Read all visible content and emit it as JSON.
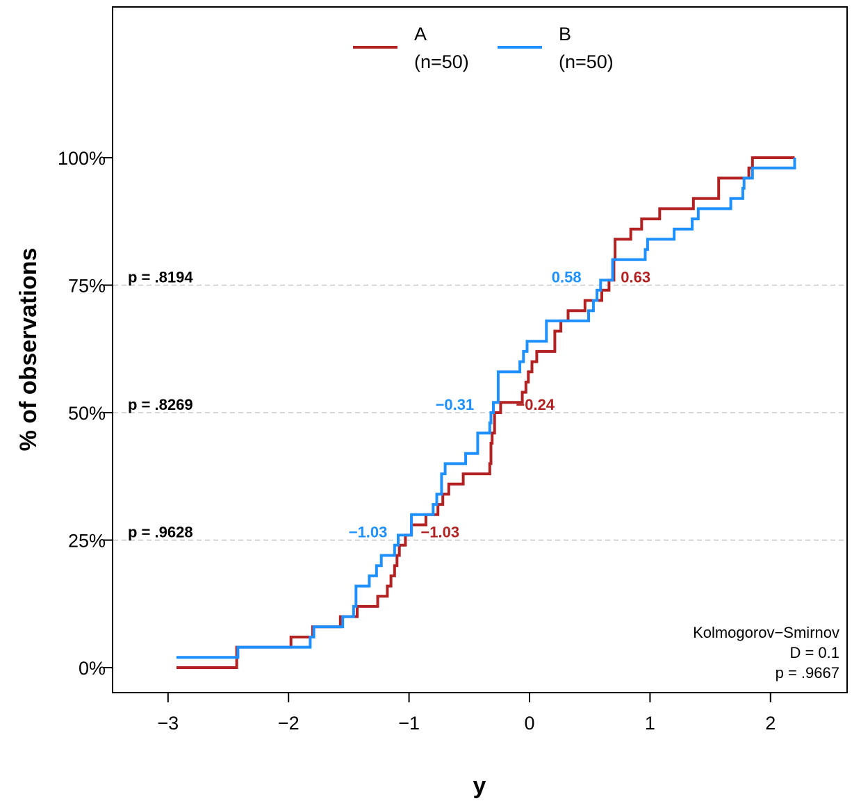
{
  "chart_data": {
    "type": "line",
    "subtype": "ecdf-step",
    "xlabel": "y",
    "ylabel": "% of observations",
    "xlim": [
      -3.45,
      2.65
    ],
    "ylim": [
      -0.05,
      1.3
    ],
    "x_ticks": [
      -3,
      -2,
      -1,
      0,
      1,
      2
    ],
    "x_tick_labels": [
      "−3",
      "−2",
      "−1",
      "0",
      "1",
      "2"
    ],
    "y_ticks": [
      0,
      0.25,
      0.5,
      0.75,
      1.0
    ],
    "y_tick_labels": [
      "0%",
      "25%",
      "50%",
      "75%",
      "100%"
    ],
    "grid": "dashed gray lines at 25%, 50%, 75% only",
    "legend_position": "top-center",
    "series": [
      {
        "name": "A",
        "n_label": "(n=50)",
        "color": "#B22222",
        "steps": [
          [
            -2.93,
            0.0
          ],
          [
            -2.43,
            0.04
          ],
          [
            -1.98,
            0.06
          ],
          [
            -1.86,
            0.06
          ],
          [
            -1.8,
            0.08
          ],
          [
            -1.6,
            0.08
          ],
          [
            -1.57,
            0.1
          ],
          [
            -1.5,
            0.1
          ],
          [
            -1.43,
            0.12
          ],
          [
            -1.34,
            0.12
          ],
          [
            -1.26,
            0.14
          ],
          [
            -1.18,
            0.16
          ],
          [
            -1.15,
            0.18
          ],
          [
            -1.12,
            0.2
          ],
          [
            -1.1,
            0.22
          ],
          [
            -1.08,
            0.24
          ],
          [
            -1.03,
            0.26
          ],
          [
            -1.0,
            0.26
          ],
          [
            -0.98,
            0.28
          ],
          [
            -0.87,
            0.28
          ],
          [
            -0.86,
            0.3
          ],
          [
            -0.76,
            0.32
          ],
          [
            -0.72,
            0.34
          ],
          [
            -0.67,
            0.36
          ],
          [
            -0.55,
            0.38
          ],
          [
            -0.33,
            0.4
          ],
          [
            -0.32,
            0.44
          ],
          [
            -0.31,
            0.46
          ],
          [
            -0.29,
            0.5
          ],
          [
            -0.24,
            0.52
          ],
          [
            -0.11,
            0.52
          ],
          [
            -0.06,
            0.54
          ],
          [
            -0.03,
            0.56
          ],
          [
            -0.01,
            0.58
          ],
          [
            0.02,
            0.6
          ],
          [
            0.06,
            0.62
          ],
          [
            0.21,
            0.66
          ],
          [
            0.26,
            0.68
          ],
          [
            0.32,
            0.7
          ],
          [
            0.46,
            0.72
          ],
          [
            0.56,
            0.72
          ],
          [
            0.6,
            0.74
          ],
          [
            0.66,
            0.76
          ],
          [
            0.7,
            0.8
          ],
          [
            0.71,
            0.84
          ],
          [
            0.84,
            0.86
          ],
          [
            0.93,
            0.88
          ],
          [
            1.08,
            0.9
          ],
          [
            1.36,
            0.92
          ],
          [
            1.57,
            0.96
          ],
          [
            1.76,
            0.96
          ],
          [
            1.82,
            0.98
          ],
          [
            1.85,
            1.0
          ],
          [
            2.2,
            1.0
          ]
        ]
      },
      {
        "name": "B",
        "n_label": "(n=50)",
        "color": "#1E90FF",
        "steps": [
          [
            -2.93,
            0.02
          ],
          [
            -2.42,
            0.04
          ],
          [
            -1.88,
            0.04
          ],
          [
            -1.82,
            0.06
          ],
          [
            -1.79,
            0.08
          ],
          [
            -1.6,
            0.08
          ],
          [
            -1.55,
            0.1
          ],
          [
            -1.46,
            0.12
          ],
          [
            -1.44,
            0.16
          ],
          [
            -1.35,
            0.16
          ],
          [
            -1.33,
            0.18
          ],
          [
            -1.27,
            0.2
          ],
          [
            -1.23,
            0.22
          ],
          [
            -1.14,
            0.22
          ],
          [
            -1.12,
            0.24
          ],
          [
            -1.09,
            0.26
          ],
          [
            -1.05,
            0.26
          ],
          [
            -0.98,
            0.3
          ],
          [
            -0.82,
            0.3
          ],
          [
            -0.8,
            0.32
          ],
          [
            -0.77,
            0.34
          ],
          [
            -0.73,
            0.38
          ],
          [
            -0.7,
            0.4
          ],
          [
            -0.57,
            0.4
          ],
          [
            -0.53,
            0.42
          ],
          [
            -0.45,
            0.42
          ],
          [
            -0.43,
            0.46
          ],
          [
            -0.35,
            0.46
          ],
          [
            -0.33,
            0.48
          ],
          [
            -0.32,
            0.5
          ],
          [
            -0.3,
            0.52
          ],
          [
            -0.27,
            0.52
          ],
          [
            -0.26,
            0.58
          ],
          [
            -0.1,
            0.58
          ],
          [
            -0.08,
            0.6
          ],
          [
            -0.05,
            0.62
          ],
          [
            -0.02,
            0.64
          ],
          [
            0.08,
            0.64
          ],
          [
            0.14,
            0.68
          ],
          [
            0.47,
            0.68
          ],
          [
            0.49,
            0.7
          ],
          [
            0.53,
            0.72
          ],
          [
            0.56,
            0.74
          ],
          [
            0.59,
            0.76
          ],
          [
            0.67,
            0.76
          ],
          [
            0.69,
            0.8
          ],
          [
            0.96,
            0.82
          ],
          [
            0.98,
            0.84
          ],
          [
            1.2,
            0.86
          ],
          [
            1.35,
            0.88
          ],
          [
            1.4,
            0.9
          ],
          [
            1.67,
            0.92
          ],
          [
            1.77,
            0.94
          ],
          [
            1.78,
            0.96
          ],
          [
            1.85,
            0.98
          ],
          [
            2.2,
            1.0
          ]
        ]
      }
    ],
    "quantile_labels": [
      {
        "y": 0.25,
        "p_label": "p = .9628",
        "a_value": "−1.03",
        "a_x": -1.03,
        "b_value": "−1.03",
        "b_x": -1.03
      },
      {
        "y": 0.5,
        "p_label": "p = .8269",
        "a_value": "−0.24",
        "a_x": -0.24,
        "b_value": "−0.31",
        "b_x": -0.31
      },
      {
        "y": 0.75,
        "p_label": "p = .8194",
        "a_value": "0.63",
        "a_x": 0.63,
        "b_value": "0.58",
        "b_x": 0.58
      }
    ],
    "test_box": {
      "title": "Kolmogorov−Smirnov",
      "stat": "D = 0.1",
      "p": "p = .9667"
    }
  }
}
